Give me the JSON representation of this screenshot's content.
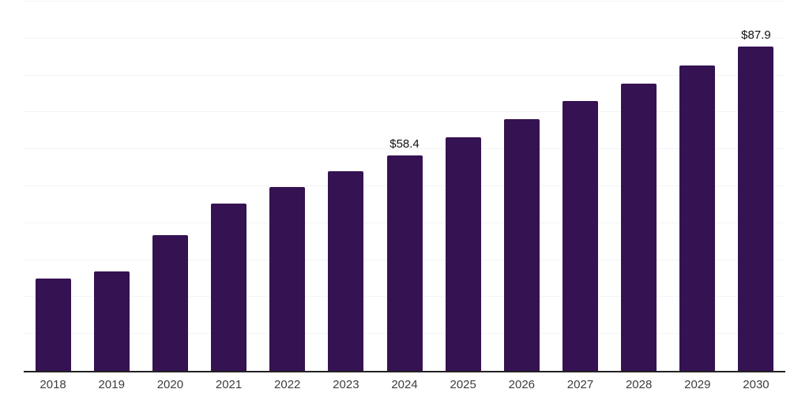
{
  "chart_data": {
    "type": "bar",
    "categories": [
      "2018",
      "2019",
      "2020",
      "2021",
      "2022",
      "2023",
      "2024",
      "2025",
      "2026",
      "2027",
      "2028",
      "2029",
      "2030"
    ],
    "values": [
      25.1,
      27.0,
      36.7,
      45.4,
      49.7,
      54.0,
      58.4,
      63.3,
      68.1,
      73.0,
      77.7,
      82.6,
      87.9
    ],
    "data_labels": {
      "2024": "$58.4",
      "2030": "$87.9"
    },
    "ylim": [
      0,
      100
    ],
    "grid_step": 10,
    "grid": "horizontal-only",
    "y_axis_tick_labels": "hidden",
    "legend": "none",
    "colors": {
      "bar": "#351252",
      "gridline": "#f4f4f6",
      "axis_line": "#222222",
      "x_tick_label": "#3d3d3d",
      "data_label": "#111111",
      "background": "#ffffff"
    }
  }
}
